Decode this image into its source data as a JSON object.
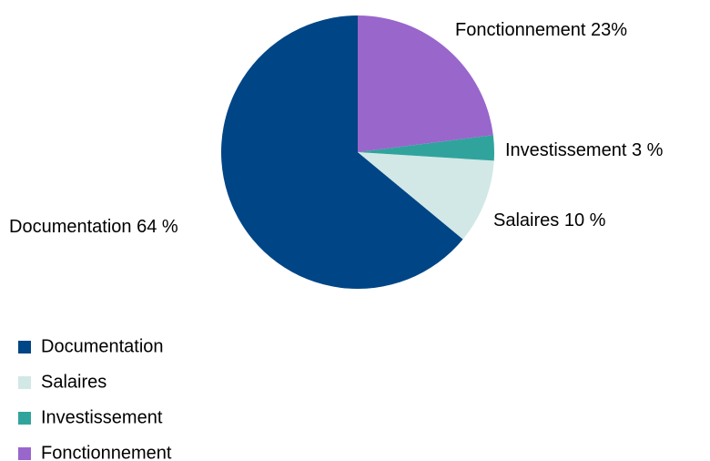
{
  "chart_data": {
    "type": "pie",
    "categories": [
      "Documentation",
      "Salaires",
      "Investissement",
      "Fonctionnement"
    ],
    "values": [
      64,
      10,
      3,
      23
    ],
    "value_labels": [
      "64 %",
      "10 %",
      "3 %",
      "23%"
    ],
    "colors": [
      "#004586",
      "#d1e8e6",
      "#30a49c",
      "#9966cc"
    ],
    "legend": "bottom-left"
  }
}
